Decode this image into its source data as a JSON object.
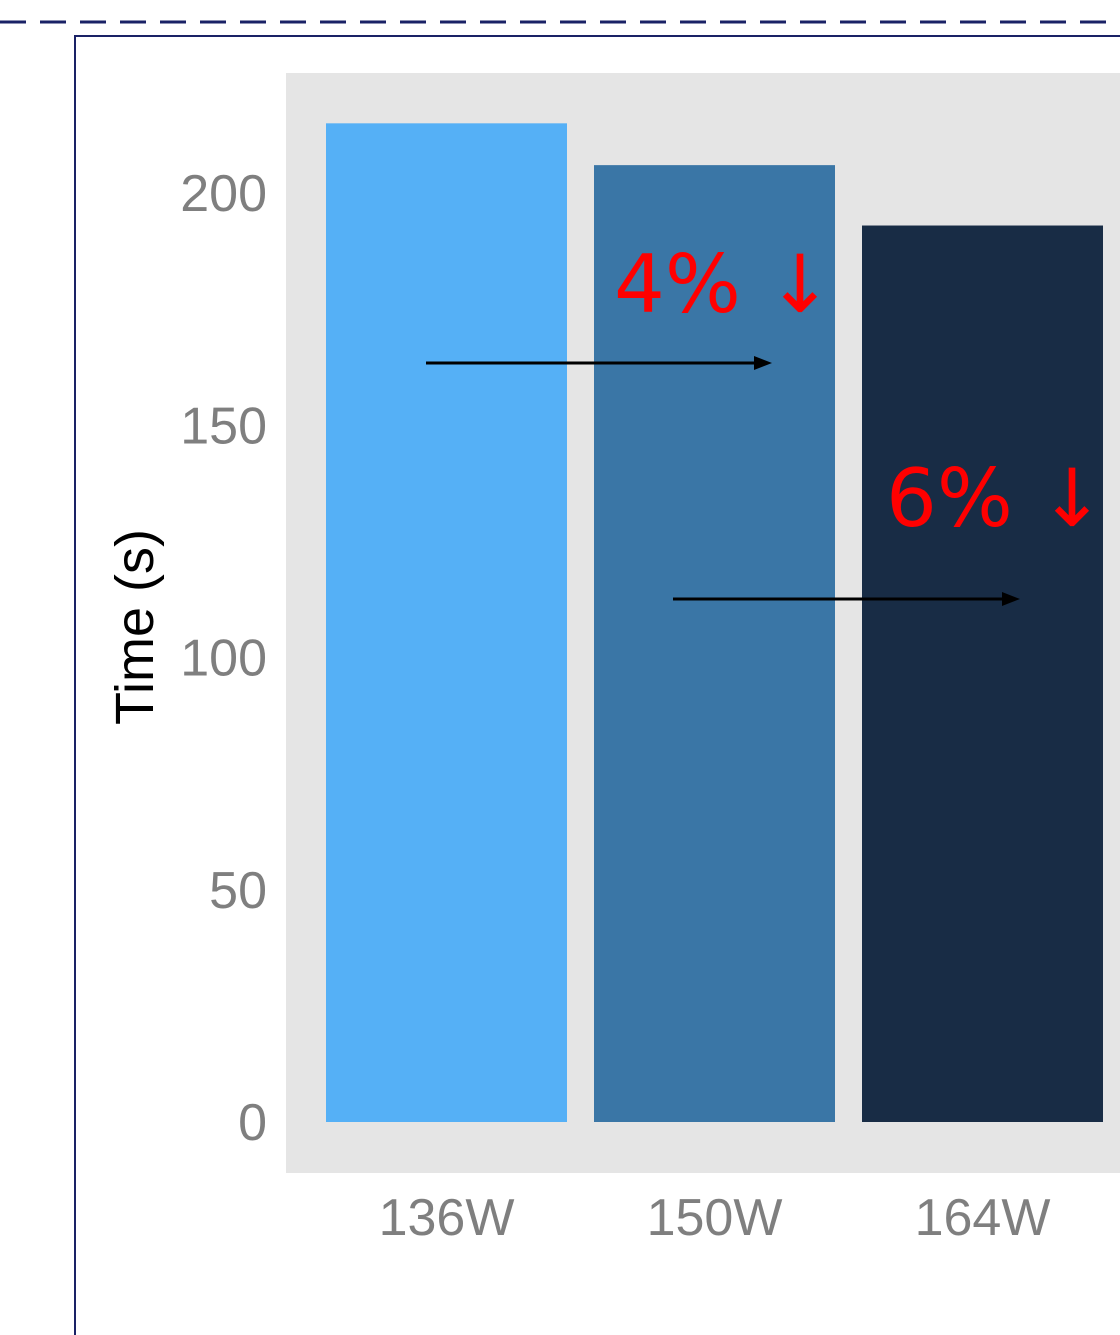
{
  "chart_data": {
    "type": "bar",
    "categories": [
      "136W",
      "150W",
      "164W"
    ],
    "values": [
      215,
      206,
      193
    ],
    "ylabel": "Time (s)",
    "xlabel": "",
    "ylim": [
      0,
      225
    ],
    "yticks": [
      0,
      50,
      100,
      150,
      200
    ],
    "grid": false,
    "bar_colors": [
      "#55b0f6",
      "#3a76a6",
      "#182c45"
    ],
    "background": "#e5e5e5",
    "annotations": [
      {
        "text": "4% ↓",
        "from": "136W",
        "to": "150W",
        "color": "#ff0000"
      },
      {
        "text": "6% ↓",
        "from": "150W",
        "to": "164W",
        "color": "#ff0000"
      }
    ]
  }
}
